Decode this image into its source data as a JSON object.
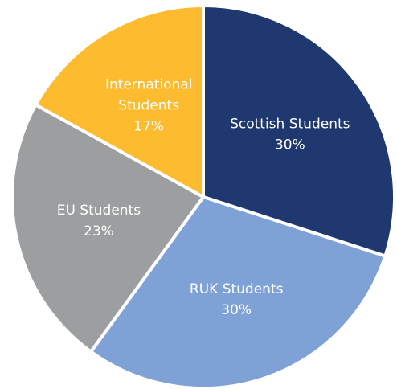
{
  "chart_data": {
    "type": "pie",
    "start_angle_deg": 0,
    "direction": "clockwise",
    "slices": [
      {
        "name": "Scottish Students",
        "value": 30,
        "label_lines": [
          "Scottish Students",
          "30%"
        ],
        "color": "#1f386f",
        "text_color": "#ffffff"
      },
      {
        "name": "RUK Students",
        "value": 30,
        "label_lines": [
          "RUK Students",
          "30%"
        ],
        "color": "#7fa2d6",
        "text_color": "#ffffff"
      },
      {
        "name": "EU Students",
        "value": 23,
        "label_lines": [
          "EU Students",
          "23%"
        ],
        "color": "#9c9e9f",
        "text_color": "#ffffff"
      },
      {
        "name": "International Students",
        "value": 17,
        "label_lines": [
          "International",
          "Students",
          "17%"
        ],
        "color": "#fdbb2f",
        "text_color": "#ffffff"
      }
    ]
  }
}
